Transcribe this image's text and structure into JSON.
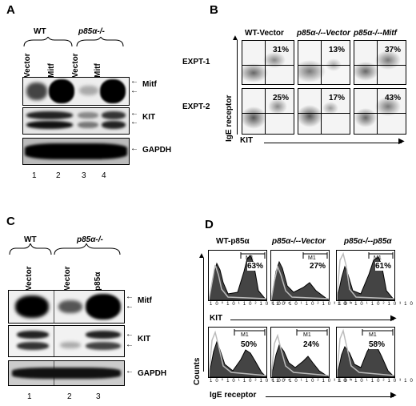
{
  "panels": {
    "A": {
      "label": "A",
      "group_wt": "WT",
      "group_ko": "p85α-/-",
      "lanes": [
        "Vector",
        "Mitf",
        "Vector",
        "Mitf"
      ],
      "lane_numbers": [
        "1",
        "2",
        "3",
        "4"
      ],
      "blots": [
        "Mitf",
        "KIT",
        "GAPDH"
      ]
    },
    "B": {
      "label": "B",
      "columns": [
        "WT-Vector",
        "p85α-/--Vector",
        "p85α-/--Mitf"
      ],
      "rows": [
        "EXPT-1",
        "EXPT-2"
      ],
      "percentages": [
        [
          "31%",
          "13%",
          "37%"
        ],
        [
          "25%",
          "17%",
          "43%"
        ]
      ],
      "y_axis": "IgE receptor",
      "x_axis": "KIT"
    },
    "C": {
      "label": "C",
      "group_wt": "WT",
      "group_ko": "p85α-/-",
      "lanes": [
        "Vector",
        "Vector",
        "p85α"
      ],
      "lane_numbers": [
        "1",
        "2",
        "3"
      ],
      "blots": [
        "Mitf",
        "KIT",
        "GAPDH"
      ]
    },
    "D": {
      "label": "D",
      "columns": [
        "WT-p85α",
        "p85α-/--Vector",
        "p85α-/--p85α"
      ],
      "percentages": [
        [
          "63%",
          "27%",
          "61%"
        ],
        [
          "50%",
          "24%",
          "58%"
        ]
      ],
      "marker": "M1",
      "x_axis_top": "KIT",
      "x_axis_bottom": "IgE receptor",
      "y_axis": "Counts",
      "ticks": [
        "10⁰",
        "10¹",
        "10²",
        "10³",
        "10⁴"
      ]
    }
  }
}
